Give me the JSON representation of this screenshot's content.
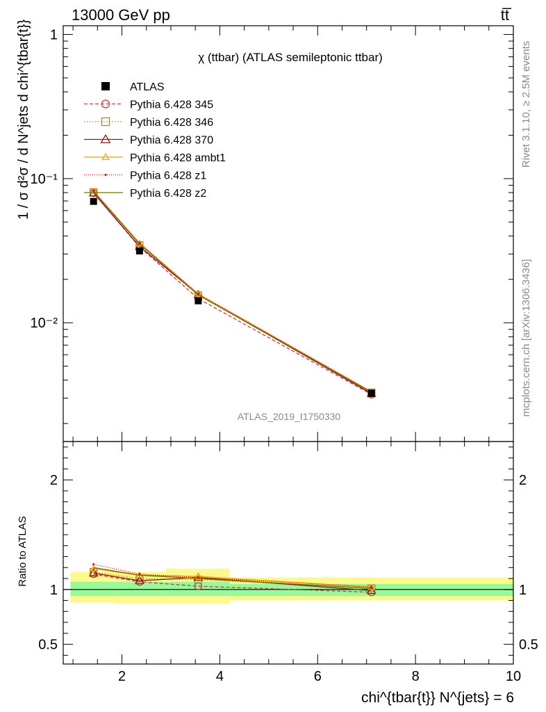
{
  "header": {
    "left": "13000 GeV pp",
    "right": "tt̅"
  },
  "side": {
    "rivet": "Rivet 3.1.10, ≥ 2.5M events",
    "mcplots": "mcplots.cern.ch [arXiv:1306.3436]"
  },
  "chart_data": [
    {
      "type": "line",
      "panel": "main",
      "title": "χ (ttbar) (ATLAS semileptonic ttbar)",
      "watermark": "ATLAS_2019_I1750330",
      "ylabel": "1 / σ d²σ / d N^jets d chi^{tbar{t}}",
      "yscale": "log",
      "xlim": [
        0.8,
        10.0
      ],
      "ylim": [
        0.0015,
        1.15
      ],
      "y_ticks": [
        {
          "value": 1,
          "label": "1"
        },
        {
          "value": 0.1,
          "label": "10⁻¹"
        },
        {
          "value": 0.01,
          "label": "10⁻²"
        }
      ],
      "x": [
        1.42,
        2.36,
        3.56,
        7.1
      ],
      "series": [
        {
          "name": "ATLAS",
          "color": "#000000",
          "marker": "square",
          "dash": "",
          "values": [
            0.0695,
            0.0315,
            0.0142,
            0.00325
          ]
        },
        {
          "name": "Pythia 6.428 345",
          "color": "#c0394b",
          "marker": "circle",
          "dash": "5,3",
          "values": [
            0.0795,
            0.0335,
            0.0147,
            0.00318
          ]
        },
        {
          "name": "Pythia 6.428 346",
          "color": "#a88930",
          "marker": "square-open",
          "dash": "1.5,2.5",
          "values": [
            0.0805,
            0.0345,
            0.0155,
            0.00328
          ]
        },
        {
          "name": "Pythia 6.428 370",
          "color": "#8b1a1a",
          "marker": "triangle",
          "dash": "",
          "values": [
            0.0795,
            0.0338,
            0.0157,
            0.00322
          ]
        },
        {
          "name": "Pythia 6.428 ambt1",
          "color": "#f5a000",
          "marker": "triangle-small",
          "dash": "",
          "values": [
            0.0815,
            0.0355,
            0.0158,
            0.00332
          ]
        },
        {
          "name": "Pythia 6.428 z1",
          "color": "#cc1111",
          "marker": "dot",
          "dash": "1,2",
          "values": [
            0.0825,
            0.0358,
            0.0159,
            0.00333
          ]
        },
        {
          "name": "Pythia 6.428 z2",
          "color": "#707000",
          "marker": "none",
          "dash": "",
          "values": [
            0.0812,
            0.0352,
            0.0156,
            0.00329
          ]
        }
      ]
    },
    {
      "type": "line",
      "panel": "ratio",
      "ylabel": "Ratio to ATLAS",
      "xlabel": "chi^{tbar{t}} N^{jets} = 6",
      "xlim": [
        0.8,
        10.0
      ],
      "ylim": [
        0.32,
        2.35
      ],
      "x_ticks": [
        {
          "value": 2,
          "label": "2"
        },
        {
          "value": 4,
          "label": "4"
        },
        {
          "value": 6,
          "label": "6"
        },
        {
          "value": 8,
          "label": "8"
        },
        {
          "value": 10,
          "label": "10"
        }
      ],
      "y_ticks": [
        {
          "value": 0.5,
          "label": "0.5"
        },
        {
          "value": 1,
          "label": "1"
        },
        {
          "value": 2,
          "label": "2"
        }
      ],
      "bands": [
        {
          "x": [
            0.95,
            1.85
          ],
          "stat": [
            0.94,
            1.07
          ],
          "total": [
            0.88,
            1.16
          ]
        },
        {
          "x": [
            1.85,
            2.9
          ],
          "stat": [
            0.94,
            1.07
          ],
          "total": [
            0.87,
            1.16
          ]
        },
        {
          "x": [
            2.9,
            4.2
          ],
          "stat": [
            0.94,
            1.07
          ],
          "total": [
            0.87,
            1.19
          ]
        },
        {
          "x": [
            4.2,
            10.0
          ],
          "stat": [
            0.94,
            1.05
          ],
          "total": [
            0.9,
            1.11
          ]
        }
      ],
      "x": [
        1.42,
        2.36,
        3.56,
        7.1
      ],
      "series": [
        {
          "name": "Pythia 6.428 345",
          "values": [
            1.14,
            1.07,
            1.03,
            0.975
          ]
        },
        {
          "name": "Pythia 6.428 346",
          "values": [
            1.16,
            1.1,
            1.09,
            1.01
          ]
        },
        {
          "name": "Pythia 6.428 370",
          "values": [
            1.15,
            1.08,
            1.11,
            0.99
          ]
        },
        {
          "name": "Pythia 6.428 ambt1",
          "values": [
            1.19,
            1.13,
            1.12,
            1.02
          ]
        },
        {
          "name": "Pythia 6.428 z1",
          "values": [
            1.23,
            1.14,
            1.11,
            1.025
          ]
        },
        {
          "name": "Pythia 6.428 z2",
          "values": [
            1.2,
            1.13,
            1.1,
            1.01
          ]
        }
      ]
    }
  ]
}
